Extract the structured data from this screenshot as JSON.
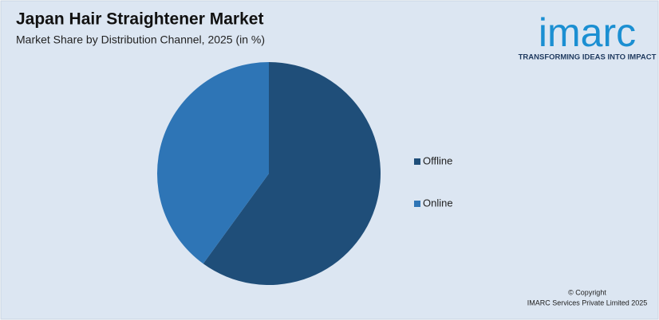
{
  "chart_data": {
    "type": "pie",
    "title": "Japan Hair Straightener Market",
    "subtitle": "Market Share by Distribution Channel, 2025 (in %)",
    "categories": [
      "Offline",
      "Online"
    ],
    "values": [
      60,
      40
    ],
    "colors": [
      "#1f4e79",
      "#2e75b6"
    ]
  },
  "logo": {
    "name": "imarc",
    "tagline": "TRANSFORMING IDEAS INTO IMPACT"
  },
  "footer": [
    "© Copyright",
    "IMARC Services Private Limited 2025"
  ]
}
